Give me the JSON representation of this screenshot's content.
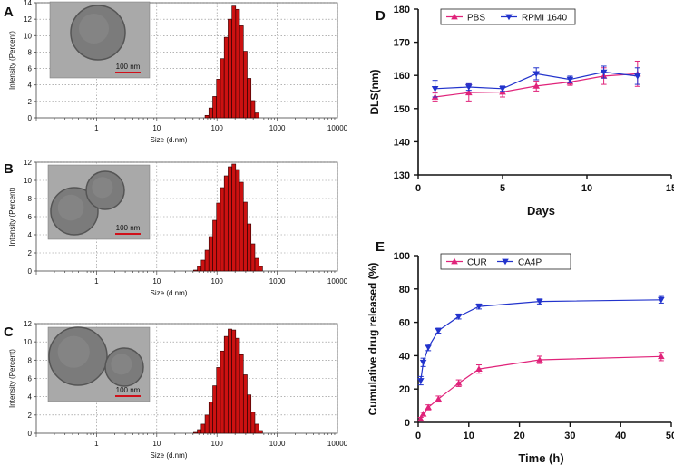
{
  "figure": {
    "panel_labels": [
      "A",
      "B",
      "C",
      "D",
      "E"
    ],
    "scale_bar_label": "100 nm"
  },
  "chart_data": [
    {
      "panel": "A",
      "type": "bar",
      "xlabel": "Size (d.nm)",
      "ylabel": "Intensity (Percent)",
      "x_scale": "log",
      "xlim": [
        0.1,
        10000
      ],
      "ylim": [
        0,
        14
      ],
      "xticks": [
        "1",
        "10",
        "100",
        "1000",
        "10000"
      ],
      "yticks": [
        "0",
        "2",
        "4",
        "6",
        "8",
        "10",
        "12",
        "14"
      ],
      "grid": true,
      "bar_color": "#cc1111",
      "inset": {
        "type": "TEM micrograph",
        "scale_bar": "100 nm"
      },
      "bins": [
        {
          "size": 68.1,
          "value": 0.3
        },
        {
          "size": 78.8,
          "value": 1.2
        },
        {
          "size": 91.3,
          "value": 2.6
        },
        {
          "size": 105.7,
          "value": 4.7
        },
        {
          "size": 122.4,
          "value": 7.2
        },
        {
          "size": 141.8,
          "value": 9.8
        },
        {
          "size": 164.2,
          "value": 12.0
        },
        {
          "size": 190.1,
          "value": 13.6
        },
        {
          "size": 220.2,
          "value": 13.2
        },
        {
          "size": 255.0,
          "value": 11.2
        },
        {
          "size": 295.3,
          "value": 8.1
        },
        {
          "size": 342.0,
          "value": 4.8
        },
        {
          "size": 396.1,
          "value": 2.1
        },
        {
          "size": 458.7,
          "value": 0.6
        }
      ]
    },
    {
      "panel": "B",
      "type": "bar",
      "xlabel": "Size (d.nm)",
      "ylabel": "Intensity (Percent)",
      "x_scale": "log",
      "xlim": [
        0.1,
        10000
      ],
      "ylim": [
        0,
        12
      ],
      "xticks": [
        "1",
        "10",
        "100",
        "1000",
        "10000"
      ],
      "yticks": [
        "0",
        "2",
        "4",
        "6",
        "8",
        "10",
        "12"
      ],
      "grid": true,
      "bar_color": "#cc1111",
      "inset": {
        "type": "TEM micrograph",
        "scale_bar": "100 nm"
      },
      "bins": [
        {
          "size": 43.8,
          "value": 0.1
        },
        {
          "size": 50.7,
          "value": 0.5
        },
        {
          "size": 58.8,
          "value": 1.2
        },
        {
          "size": 68.1,
          "value": 2.3
        },
        {
          "size": 78.8,
          "value": 3.8
        },
        {
          "size": 91.3,
          "value": 5.6
        },
        {
          "size": 105.7,
          "value": 7.5
        },
        {
          "size": 122.4,
          "value": 9.2
        },
        {
          "size": 141.8,
          "value": 10.5
        },
        {
          "size": 164.2,
          "value": 11.5
        },
        {
          "size": 190.1,
          "value": 11.8
        },
        {
          "size": 220.2,
          "value": 11.2
        },
        {
          "size": 255.0,
          "value": 9.8
        },
        {
          "size": 295.3,
          "value": 7.6
        },
        {
          "size": 342.0,
          "value": 5.2
        },
        {
          "size": 396.1,
          "value": 3.0
        },
        {
          "size": 458.7,
          "value": 1.4
        },
        {
          "size": 531.2,
          "value": 0.5
        }
      ]
    },
    {
      "panel": "C",
      "type": "bar",
      "xlabel": "Size (d.nm)",
      "ylabel": "Intensity (Percent)",
      "x_scale": "log",
      "xlim": [
        0.1,
        10000
      ],
      "ylim": [
        0,
        12
      ],
      "xticks": [
        "1",
        "10",
        "100",
        "1000",
        "10000"
      ],
      "yticks": [
        "0",
        "2",
        "4",
        "6",
        "8",
        "10",
        "12"
      ],
      "grid": true,
      "bar_color": "#cc1111",
      "inset": {
        "type": "TEM micrograph",
        "scale_bar": "100 nm"
      },
      "bins": [
        {
          "size": 43.8,
          "value": 0.1
        },
        {
          "size": 50.7,
          "value": 0.4
        },
        {
          "size": 58.8,
          "value": 1.0
        },
        {
          "size": 68.1,
          "value": 2.0
        },
        {
          "size": 78.8,
          "value": 3.4
        },
        {
          "size": 91.3,
          "value": 5.2
        },
        {
          "size": 105.7,
          "value": 7.2
        },
        {
          "size": 122.4,
          "value": 9.0
        },
        {
          "size": 141.8,
          "value": 10.6
        },
        {
          "size": 164.2,
          "value": 11.4
        },
        {
          "size": 190.1,
          "value": 11.3
        },
        {
          "size": 220.2,
          "value": 10.4
        },
        {
          "size": 255.0,
          "value": 8.6
        },
        {
          "size": 295.3,
          "value": 6.4
        },
        {
          "size": 342.0,
          "value": 4.2
        },
        {
          "size": 396.1,
          "value": 2.3
        },
        {
          "size": 458.7,
          "value": 1.0
        },
        {
          "size": 531.2,
          "value": 0.3
        }
      ]
    },
    {
      "panel": "D",
      "type": "line",
      "xlabel": "Days",
      "ylabel": "DLS(nm)",
      "xlim": [
        0,
        15
      ],
      "ylim": [
        130,
        180
      ],
      "xticks": [
        "0",
        "5",
        "10",
        "15"
      ],
      "yticks": [
        "130",
        "140",
        "150",
        "160",
        "170",
        "180"
      ],
      "legend_position": "top-left",
      "series": [
        {
          "name": "PBS",
          "color": "#e0237a",
          "marker": "triangle-up",
          "x": [
            1,
            3,
            5,
            7,
            9,
            11,
            13
          ],
          "y": [
            153.5,
            154.8,
            155.0,
            156.8,
            158.0,
            159.8,
            160.5
          ],
          "err": [
            1.2,
            2.5,
            1.5,
            1.5,
            1.0,
            2.5,
            3.8
          ]
        },
        {
          "name": "RPMI 1640",
          "color": "#2233cc",
          "marker": "triangle-down",
          "x": [
            1,
            3,
            5,
            7,
            9,
            11,
            13
          ],
          "y": [
            156.0,
            156.5,
            156.0,
            160.5,
            158.8,
            161.0,
            159.8
          ],
          "err": [
            2.5,
            1.0,
            0.8,
            1.8,
            1.0,
            1.8,
            2.5
          ]
        }
      ]
    },
    {
      "panel": "E",
      "type": "line",
      "xlabel": "Time (h)",
      "ylabel": "Cumulative drug released (%)",
      "xlim": [
        0,
        50
      ],
      "ylim": [
        0,
        100
      ],
      "xticks": [
        "0",
        "10",
        "20",
        "30",
        "40",
        "50"
      ],
      "yticks": [
        "0",
        "20",
        "40",
        "60",
        "80",
        "100"
      ],
      "legend_position": "top-left",
      "series": [
        {
          "name": "CUR",
          "color": "#e0237a",
          "marker": "triangle-up",
          "x": [
            0.5,
            1,
            2,
            4,
            8,
            12,
            24,
            48
          ],
          "y": [
            2,
            5,
            9,
            14,
            23.5,
            32,
            37.5,
            39.5
          ],
          "err": [
            1,
            1,
            1.5,
            1.8,
            2,
            2.5,
            2.2,
            2.5
          ]
        },
        {
          "name": "CA4P",
          "color": "#2233cc",
          "marker": "triangle-down",
          "x": [
            0.5,
            1,
            2,
            4,
            8,
            12,
            24,
            48
          ],
          "y": [
            25,
            36,
            45,
            55,
            63.5,
            69.5,
            72.5,
            73.5
          ],
          "err": [
            2.5,
            2.5,
            2,
            1.5,
            1.5,
            1.5,
            1.5,
            2
          ]
        }
      ]
    }
  ]
}
